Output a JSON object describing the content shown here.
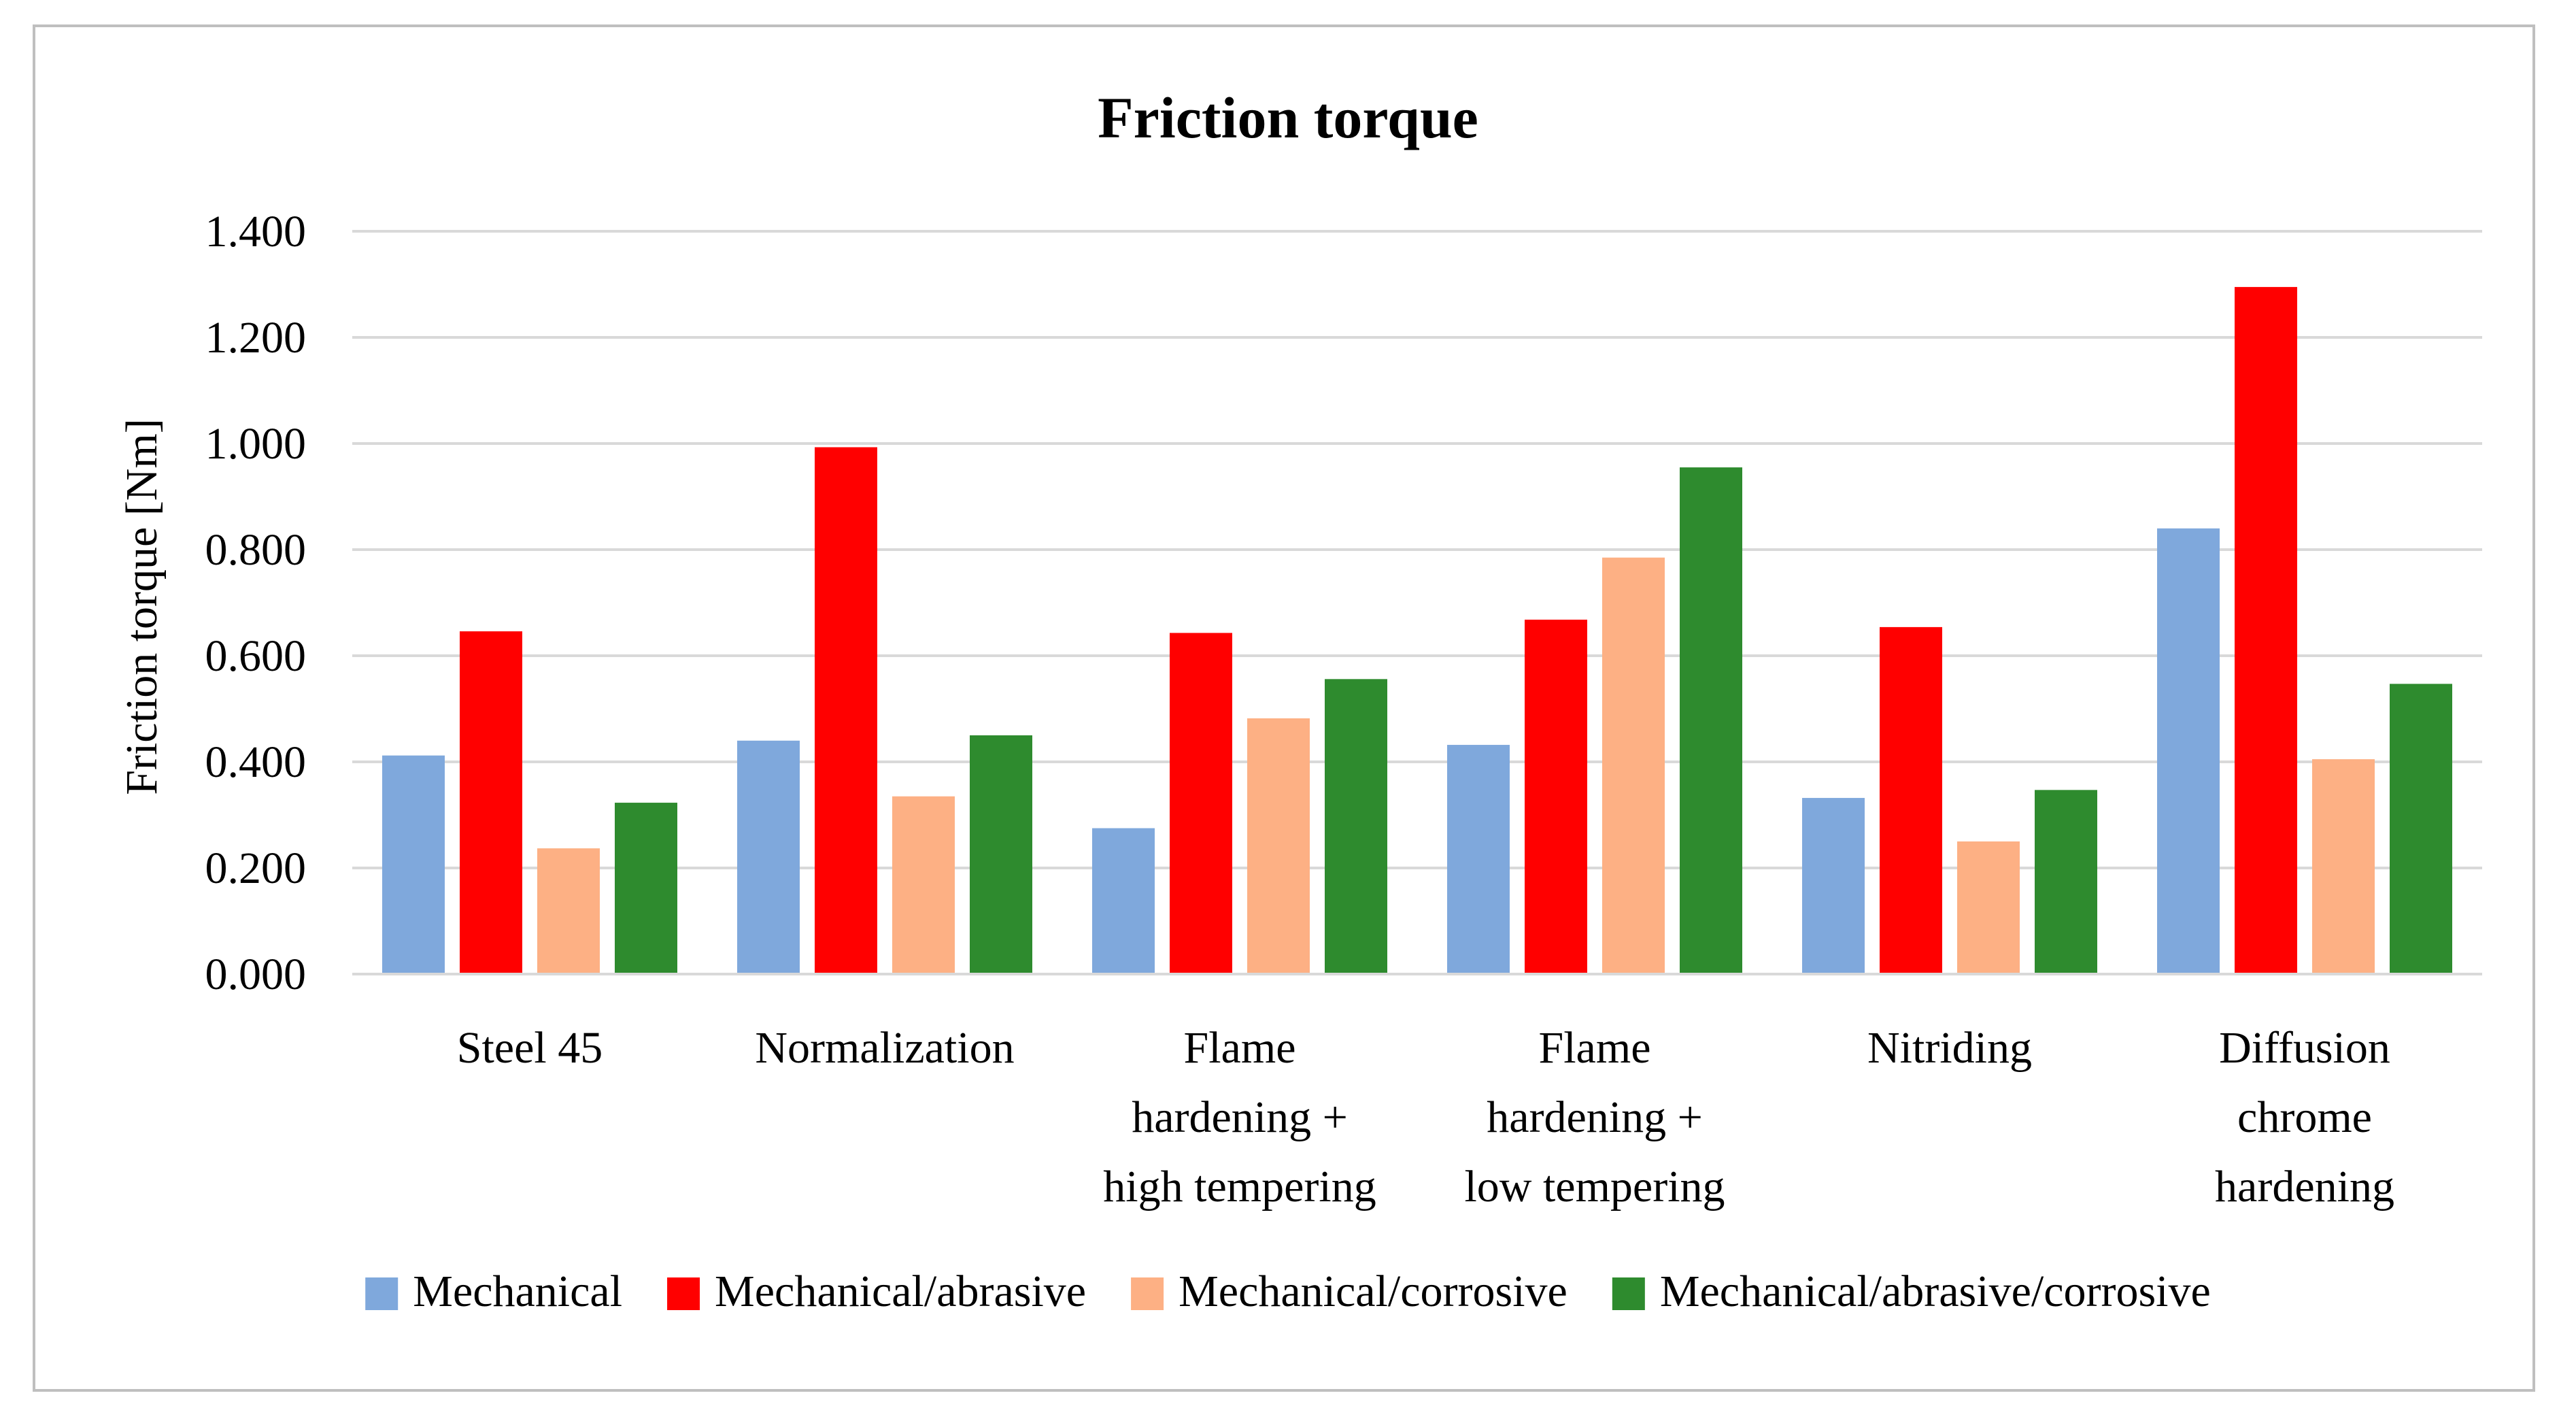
{
  "chart_data": {
    "type": "bar",
    "title": "Friction torque",
    "xlabel": "",
    "ylabel": "Friction torque [Nm]",
    "ylim": [
      0,
      1.4
    ],
    "yticks": [
      "0.000",
      "0.200",
      "0.400",
      "0.600",
      "0.800",
      "1.000",
      "1.200",
      "1.400"
    ],
    "categories": [
      [
        "Steel 45"
      ],
      [
        "Normalization"
      ],
      [
        "Flame",
        "hardening +",
        "high tempering"
      ],
      [
        "Flame",
        "hardening +",
        "low tempering"
      ],
      [
        "Nitriding"
      ],
      [
        "Diffusion",
        "chrome",
        "hardening"
      ]
    ],
    "series": [
      {
        "name": "Mechanical",
        "color": "#7FA8DC",
        "values": [
          0.412,
          0.44,
          0.275,
          0.432,
          0.332,
          0.84
        ]
      },
      {
        "name": "Mechanical/abrasive",
        "color": "#FF0000",
        "values": [
          0.646,
          0.993,
          0.643,
          0.668,
          0.654,
          1.295
        ]
      },
      {
        "name": "Mechanical/corrosive",
        "color": "#FDB084",
        "values": [
          0.237,
          0.335,
          0.482,
          0.785,
          0.25,
          0.405
        ]
      },
      {
        "name": "Mechanical/abrasive/corrosive",
        "color": "#2E8B2E",
        "values": [
          0.323,
          0.45,
          0.556,
          0.955,
          0.347,
          0.547
        ]
      }
    ],
    "grid": true,
    "legend_position": "bottom"
  }
}
